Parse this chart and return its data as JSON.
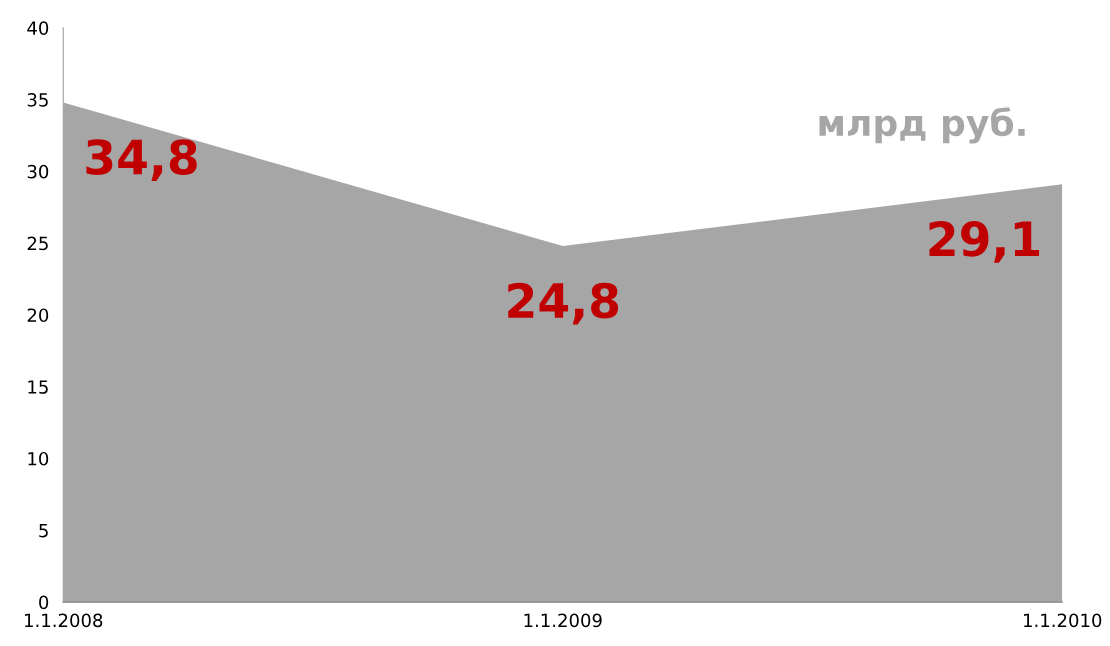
{
  "chart_data": {
    "type": "area",
    "categories": [
      "1.1.2008",
      "1.1.2009",
      "1.1.2010"
    ],
    "series": [
      {
        "color": "#a6a6a6",
        "values": [
          34.8,
          24.8,
          29.1
        ],
        "value_labels": [
          "34,8",
          "24,8",
          "29,1"
        ]
      }
    ],
    "ylim": [
      0,
      40
    ],
    "yticks": [
      0,
      5,
      10,
      15,
      20,
      25,
      30,
      35,
      40
    ],
    "grid": false,
    "annotations": [
      "млрд руб."
    ]
  }
}
